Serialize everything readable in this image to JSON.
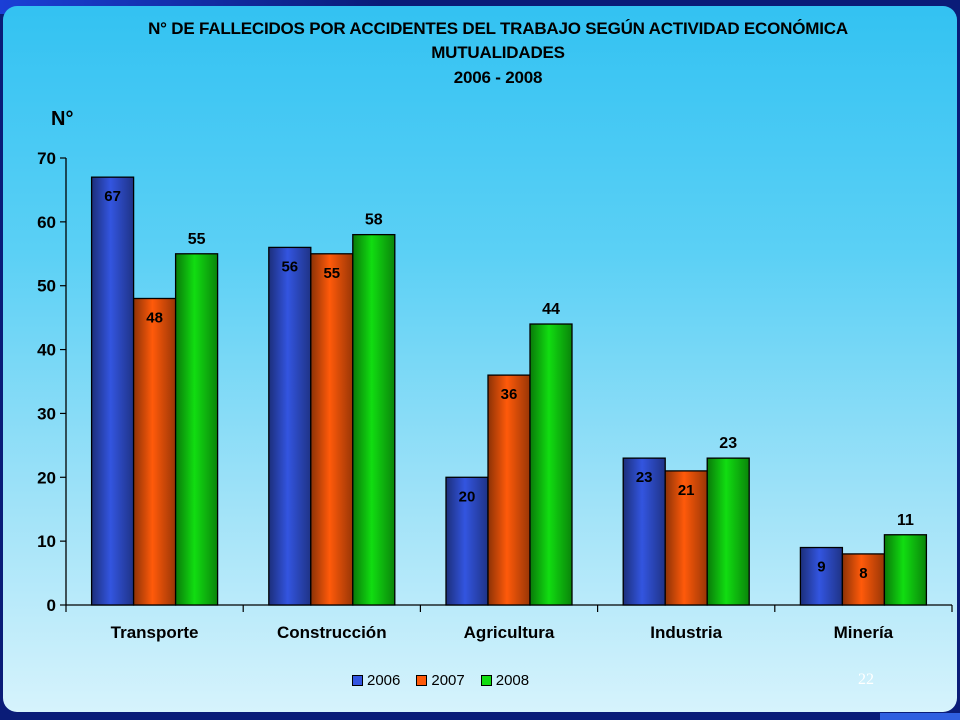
{
  "title_lines": [
    "N° DE FALLECIDOS POR ACCIDENTES DEL TRABAJO SEGÚN ACTIVIDAD ECONÓMICA",
    "MUTUALIDADES",
    "2006 - 2008"
  ],
  "page_number": "22",
  "colors": {
    "2006": "#3355e0",
    "2007": "#ff5a0a",
    "2008": "#11dd11"
  },
  "chart_data": {
    "type": "bar",
    "title": "N° DE FALLECIDOS POR ACCIDENTES DEL TRABAJO SEGÚN ACTIVIDAD ECONÓMICA MUTUALIDADES 2006 - 2008",
    "xlabel": "",
    "ylabel": "N°",
    "ylim": [
      0,
      70
    ],
    "yticks": [
      0,
      10,
      20,
      30,
      40,
      50,
      60,
      70
    ],
    "categories": [
      "Transporte",
      "Construcción",
      "Agricultura",
      "Industria",
      "Minería"
    ],
    "series": [
      {
        "name": "2006",
        "values": [
          67,
          56,
          20,
          23,
          9
        ]
      },
      {
        "name": "2007",
        "values": [
          48,
          55,
          36,
          21,
          8
        ]
      },
      {
        "name": "2008",
        "values": [
          55,
          58,
          44,
          23,
          11
        ]
      }
    ],
    "legend": "bottom",
    "grid": false
  }
}
